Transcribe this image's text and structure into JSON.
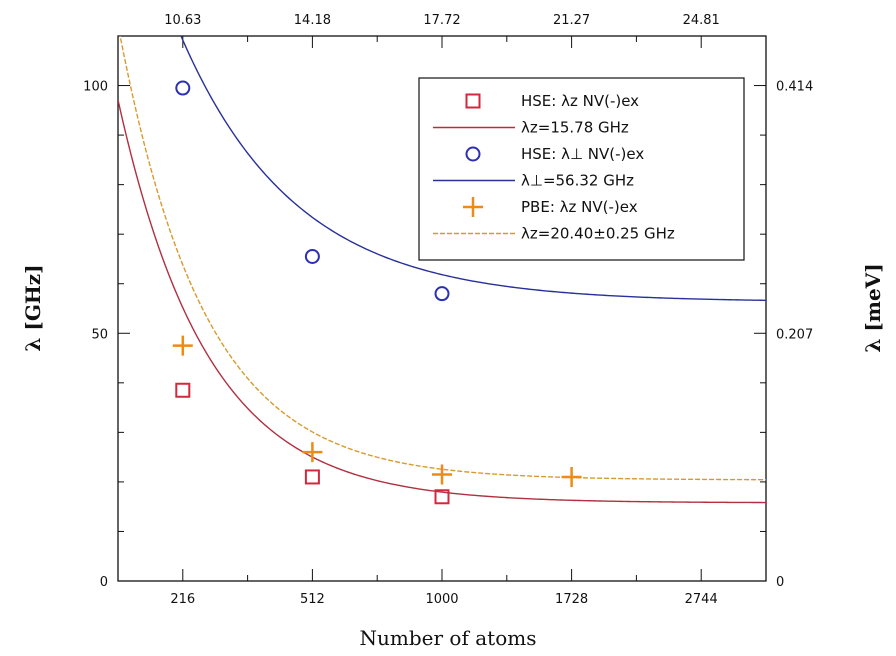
{
  "chart_data": {
    "type": "scatter",
    "xlabel": "Number of atoms",
    "ylabel": "λ [GHz]",
    "y2label": "λ [meV]",
    "x_ticks": [
      "216",
      "512",
      "1000",
      "1728",
      "2744"
    ],
    "x_top_ticks": [
      "10.63",
      "14.18",
      "17.72",
      "21.27",
      "24.81"
    ],
    "x_index": [
      1,
      2,
      3,
      4,
      5
    ],
    "xlim": [
      0.5,
      5.5
    ],
    "ylim": [
      0,
      110
    ],
    "y_ticks": [
      0,
      50,
      100
    ],
    "y2_ticks": [
      "0",
      "0.207",
      "0.414"
    ],
    "grid": false,
    "legend_position": "top-right",
    "series": [
      {
        "name": "HSE: λz NV(-)ex",
        "marker": "square",
        "color": "#d0283c",
        "x": [
          1,
          2,
          3
        ],
        "values": [
          38.5,
          21,
          17
        ]
      },
      {
        "name": "λz=15.78 GHz",
        "line": true,
        "color": "#b03040",
        "fit": {
          "asymptote": 15.78,
          "amplitude": 167.9,
          "decay": 1.45
        }
      },
      {
        "name": "HSE: λ⊥ NV(-)ex",
        "marker": "circle",
        "color": "#2b2fb5",
        "x": [
          1,
          2,
          3
        ],
        "values": [
          99.5,
          65.5,
          58
        ]
      },
      {
        "name": "λ⊥=56.32 GHz",
        "line": true,
        "color": "#28309a",
        "fit": {
          "asymptote": 56.32,
          "amplitude": 163.6,
          "decay": 1.13
        }
      },
      {
        "name": "PBE: λz NV(-)ex",
        "marker": "plus",
        "color": "#ef8a14",
        "x": [
          1,
          2,
          3,
          4
        ],
        "values": [
          47.5,
          26,
          21.5,
          21
        ]
      },
      {
        "name": "λz=20.40±0.25 GHz",
        "line": true,
        "dashed": true,
        "color": "#d89a30",
        "fit": {
          "asymptote": 20.4,
          "amplitude": 194.5,
          "decay": 1.5
        }
      }
    ]
  }
}
